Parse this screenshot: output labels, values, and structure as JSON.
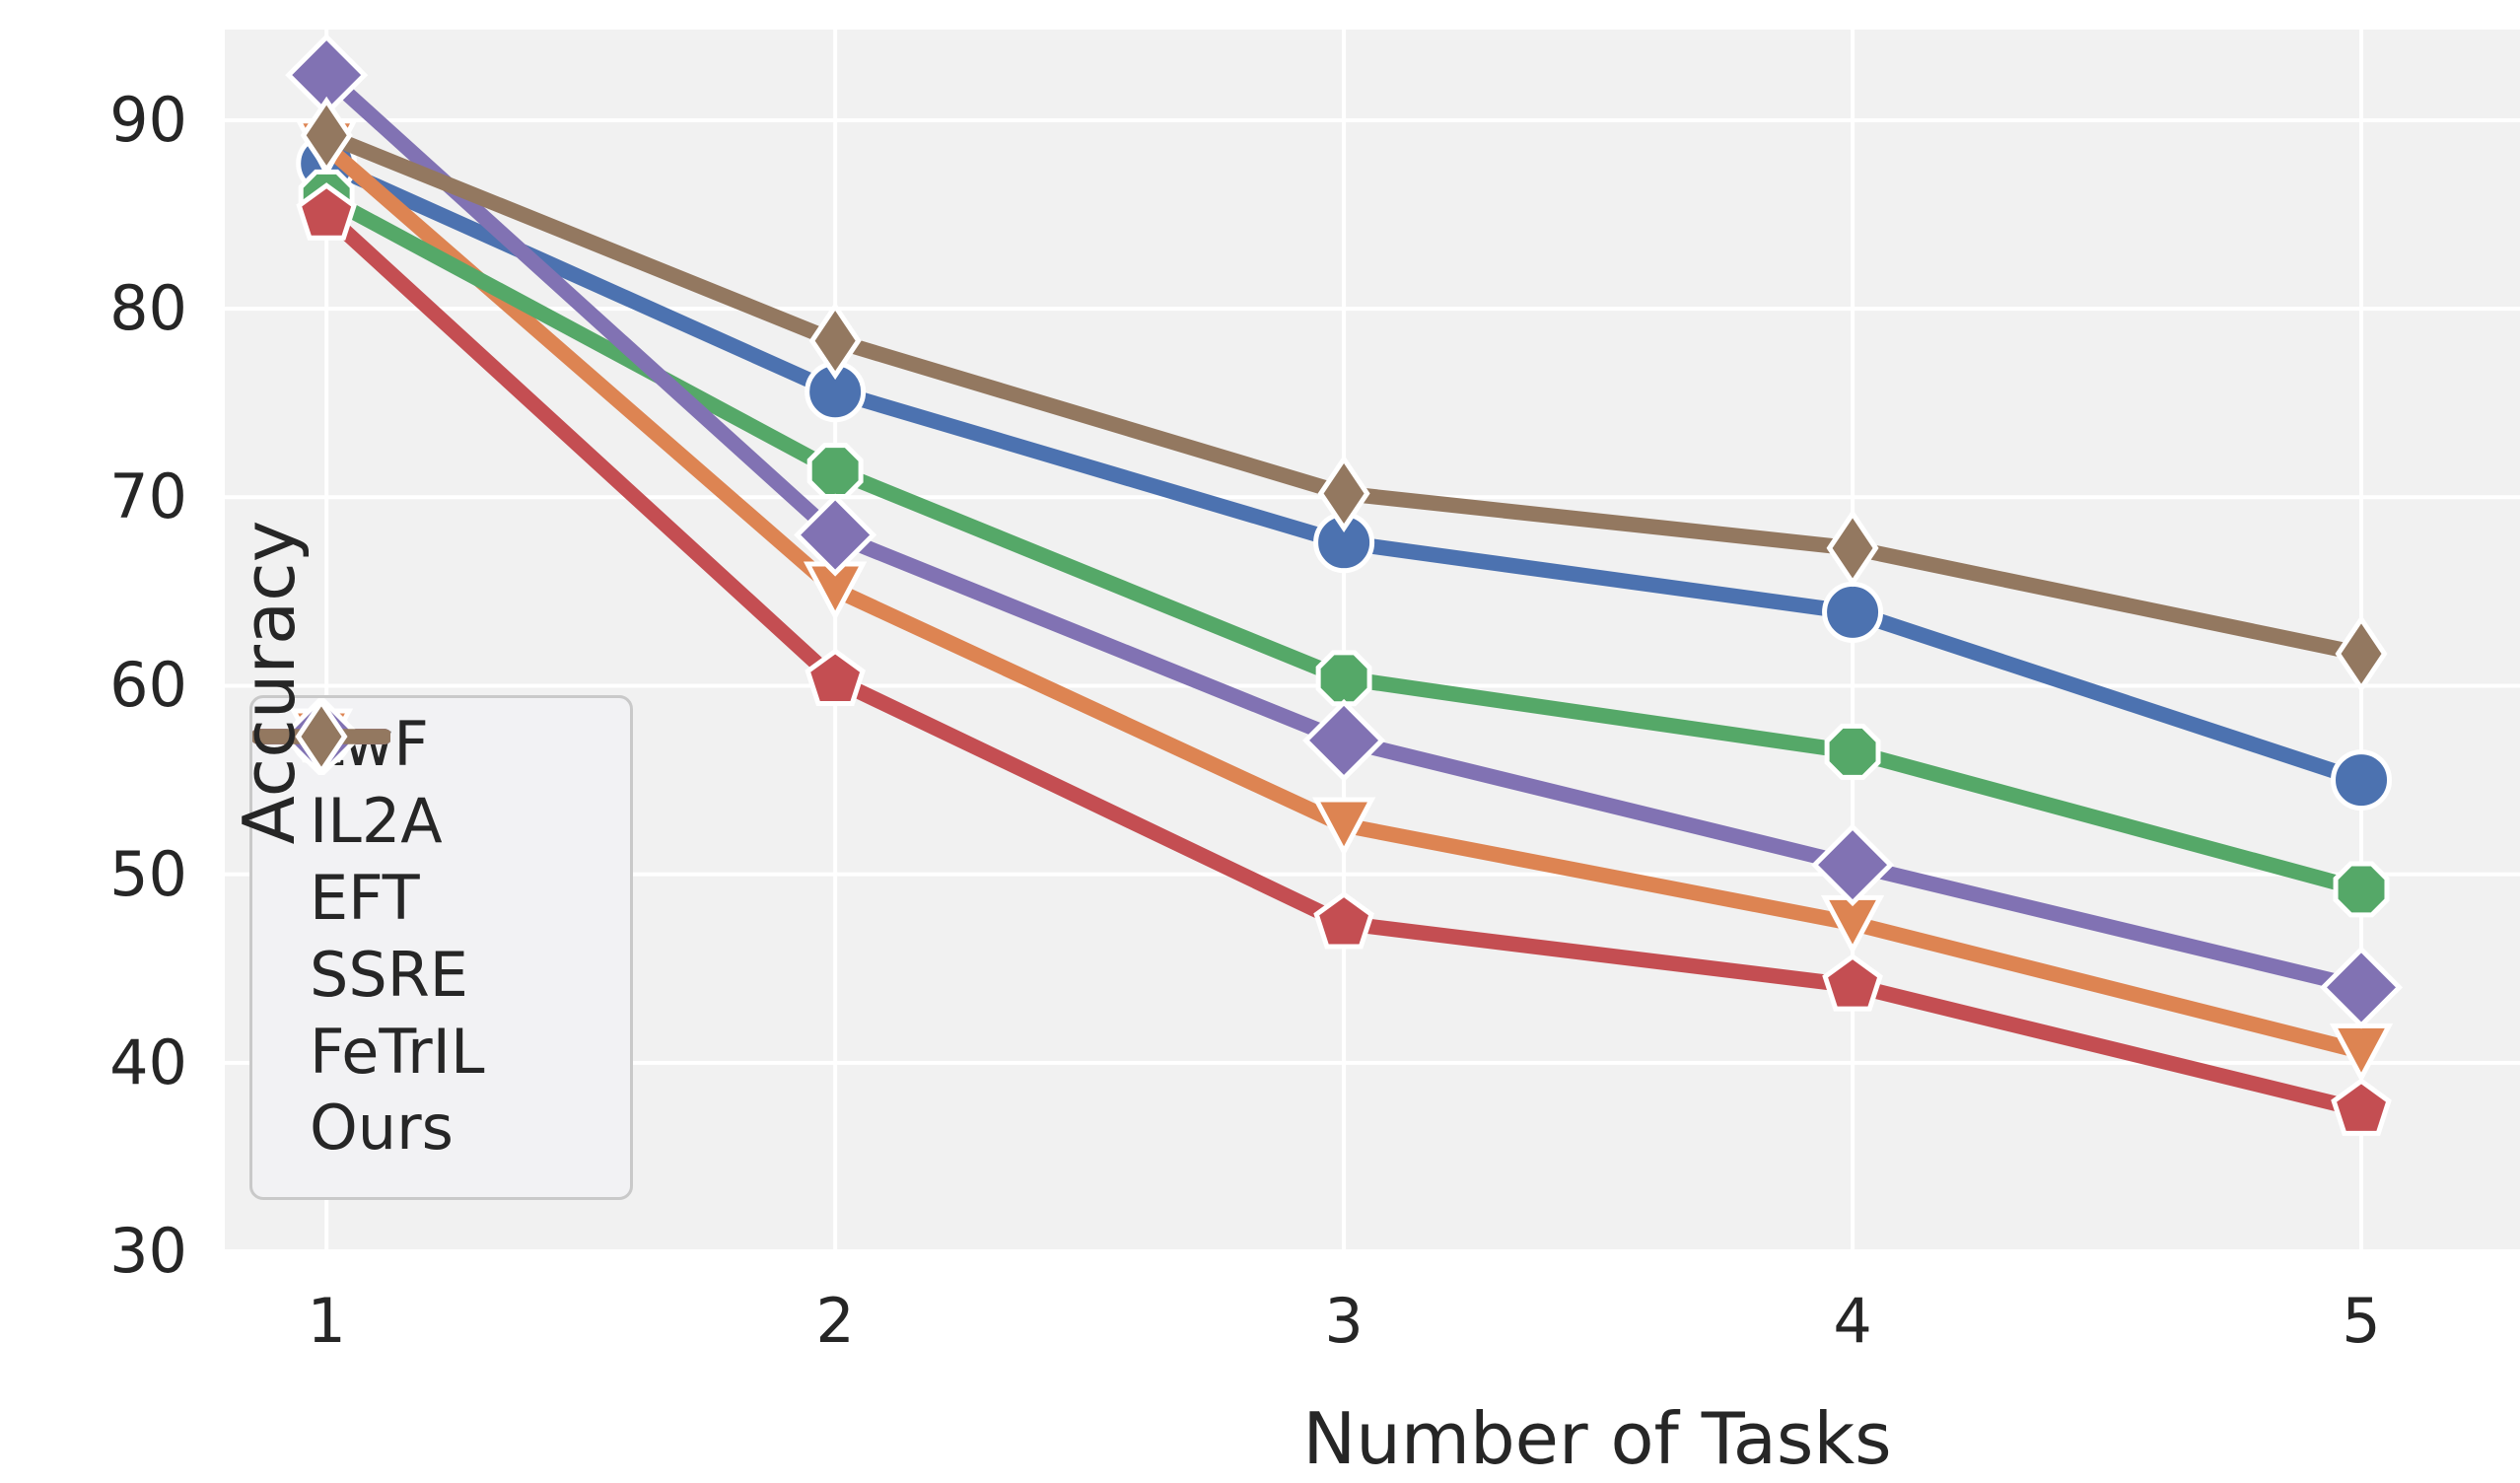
{
  "figure": {
    "background": "#ffffff",
    "axes_background": "#f1f1f1",
    "grid_color": "#ffffff",
    "text_color": "#262626",
    "legend_border_color": "#c9c9c9",
    "legend_background": "#f2f2f4"
  },
  "chart_data": {
    "type": "line",
    "title": "",
    "xlabel": "Number of Tasks",
    "ylabel": "Accuracy",
    "x": [
      1,
      2,
      3,
      4,
      5
    ],
    "xlim": [
      0.8,
      5.312
    ],
    "ylim": [
      30,
      94.81
    ],
    "xticks": [
      1,
      2,
      3,
      4,
      5
    ],
    "yticks": [
      30,
      40,
      50,
      60,
      70,
      80,
      90
    ],
    "grid": true,
    "legend_position": "center-left",
    "series": [
      {
        "name": "LwF",
        "color": "#4C72B0",
        "marker": "circle",
        "values": [
          87.7,
          75.6,
          67.6,
          63.9,
          55.0
        ]
      },
      {
        "name": "IL2A",
        "color": "#DD8452",
        "marker": "triangle-down",
        "values": [
          88.6,
          65.1,
          52.6,
          47.4,
          40.6
        ]
      },
      {
        "name": "EFT",
        "color": "#55A868",
        "marker": "octagon",
        "values": [
          85.9,
          71.4,
          60.4,
          56.5,
          49.2
        ]
      },
      {
        "name": "SSRE",
        "color": "#C44E52",
        "marker": "pentagon",
        "values": [
          85.0,
          60.3,
          47.4,
          44.1,
          37.5
        ]
      },
      {
        "name": "FeTrIL",
        "color": "#8172B3",
        "marker": "diamond",
        "values": [
          92.4,
          68.0,
          57.1,
          50.5,
          44.0
        ]
      },
      {
        "name": "Ours",
        "color": "#937860",
        "marker": "thin-diamond",
        "values": [
          89.2,
          78.3,
          70.2,
          67.3,
          61.7
        ]
      }
    ]
  }
}
